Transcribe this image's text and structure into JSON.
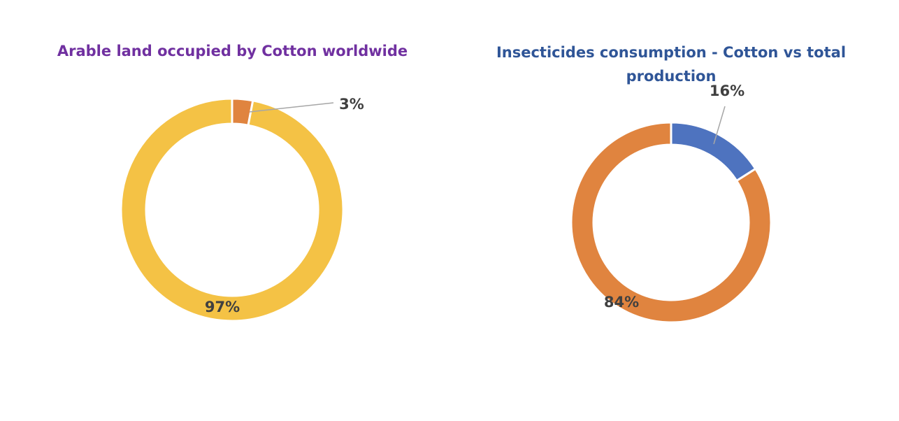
{
  "chart_data": [
    {
      "type": "pie",
      "style": "donut",
      "title": "Arable land occupied by Cotton worldwide",
      "title_color": "#7030a0",
      "slices": [
        {
          "value": 3,
          "label": "3%",
          "color": "#e0843f"
        },
        {
          "value": 97,
          "label": "97%",
          "color": "#f4c245"
        }
      ]
    },
    {
      "type": "pie",
      "style": "donut",
      "title": "Insecticides consumption - Cotton vs total production",
      "title_color": "#2f5597",
      "slices": [
        {
          "value": 16,
          "label": "16%",
          "color": "#4e73bf"
        },
        {
          "value": 84,
          "label": "84%",
          "color": "#e0843f"
        }
      ]
    }
  ]
}
